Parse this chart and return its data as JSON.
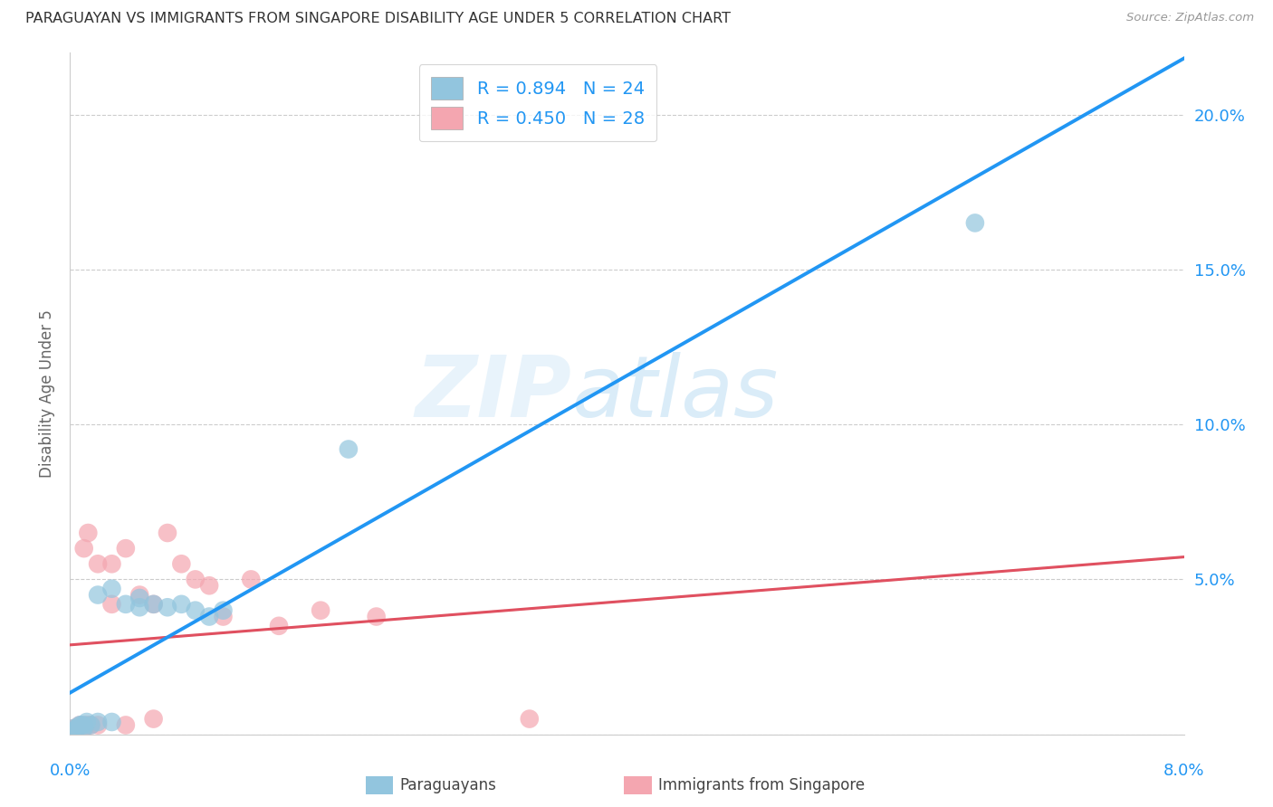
{
  "title": "PARAGUAYAN VS IMMIGRANTS FROM SINGAPORE DISABILITY AGE UNDER 5 CORRELATION CHART",
  "source": "Source: ZipAtlas.com",
  "ylabel": "Disability Age Under 5",
  "legend_blue_R": "R = 0.894",
  "legend_blue_N": "N = 24",
  "legend_pink_R": "R = 0.450",
  "legend_pink_N": "N = 28",
  "legend_label_blue": "Paraguayans",
  "legend_label_pink": "Immigrants from Singapore",
  "watermark_zip": "ZIP",
  "watermark_atlas": "atlas",
  "blue_color": "#92c5de",
  "pink_color": "#f4a6b0",
  "line_blue_color": "#2196f3",
  "line_pink_color": "#e05060",
  "line_pink_dash_color": "#e8a0a8",
  "background_color": "#ffffff",
  "xlim": [
    0.0,
    0.08
  ],
  "ylim": [
    0.0,
    0.22
  ],
  "par_x": [
    0.0003,
    0.0005,
    0.0007,
    0.001,
    0.001,
    0.0012,
    0.0013,
    0.0015,
    0.002,
    0.002,
    0.003,
    0.003,
    0.004,
    0.004,
    0.005,
    0.005,
    0.006,
    0.007,
    0.008,
    0.009,
    0.01,
    0.011,
    0.02,
    0.065
  ],
  "par_y": [
    0.001,
    0.002,
    0.003,
    0.002,
    0.003,
    0.003,
    0.004,
    0.004,
    0.003,
    0.045,
    0.003,
    0.047,
    0.04,
    0.043,
    0.041,
    0.044,
    0.042,
    0.041,
    0.042,
    0.04,
    0.038,
    0.04,
    0.092,
    0.165
  ],
  "sing_x": [
    0.0003,
    0.0005,
    0.0007,
    0.001,
    0.001,
    0.0012,
    0.0014,
    0.002,
    0.002,
    0.003,
    0.003,
    0.004,
    0.004,
    0.005,
    0.005,
    0.006,
    0.006,
    0.007,
    0.008,
    0.009,
    0.01,
    0.011,
    0.013,
    0.014,
    0.015,
    0.018,
    0.022,
    0.033
  ],
  "sing_y": [
    0.001,
    0.002,
    0.003,
    0.002,
    0.06,
    0.003,
    0.065,
    0.003,
    0.055,
    0.042,
    0.055,
    0.06,
    0.003,
    0.003,
    0.045,
    0.042,
    0.005,
    0.065,
    0.055,
    0.05,
    0.048,
    0.038,
    0.05,
    0.005,
    0.035,
    0.04,
    0.038,
    0.005
  ]
}
